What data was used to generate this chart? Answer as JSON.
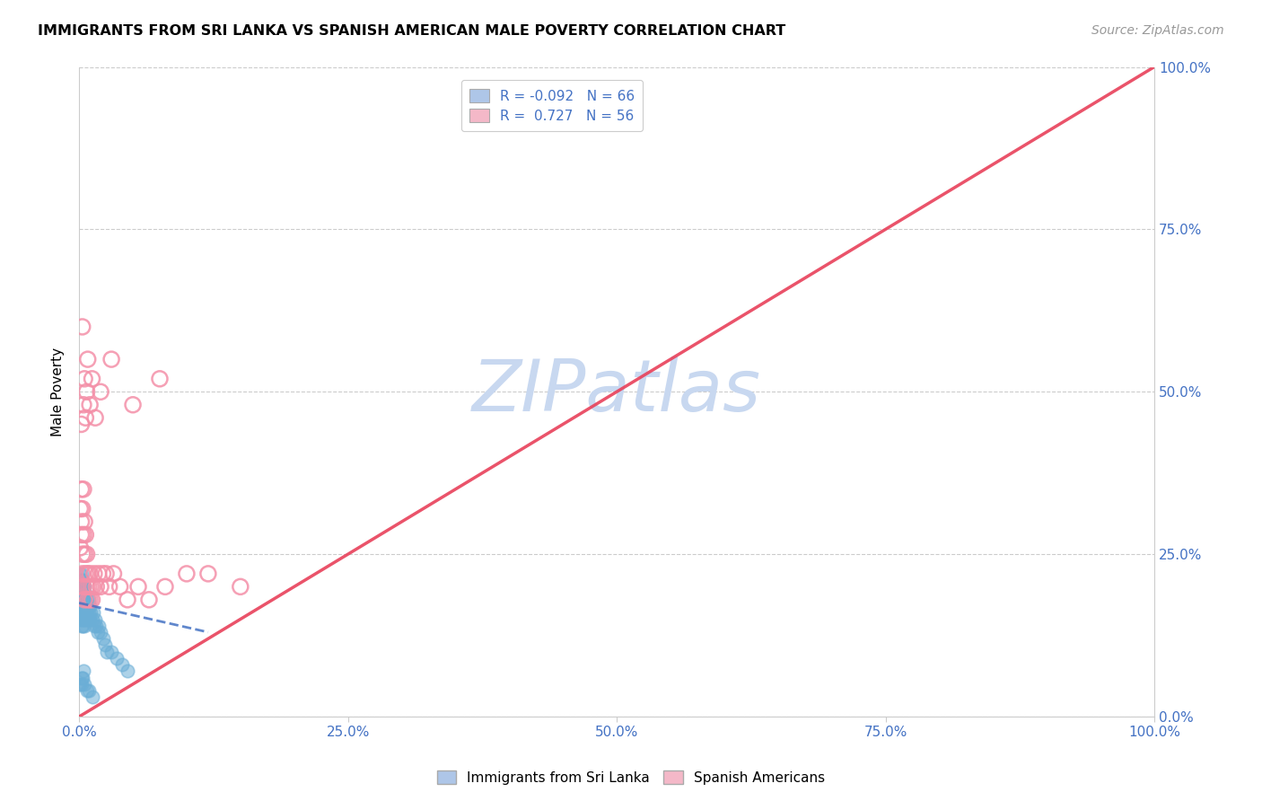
{
  "title": "IMMIGRANTS FROM SRI LANKA VS SPANISH AMERICAN MALE POVERTY CORRELATION CHART",
  "source": "Source: ZipAtlas.com",
  "ylabel": "Male Poverty",
  "xlim": [
    0.0,
    1.0
  ],
  "ylim": [
    0.0,
    1.0
  ],
  "legend_entry1_label": "R = -0.092   N = 66",
  "legend_entry2_label": "R =  0.727   N = 56",
  "legend_entry1_color": "#aec6e8",
  "legend_entry2_color": "#f4b8c8",
  "watermark": "ZIPatlas",
  "watermark_color": "#c8d8f0",
  "sri_lanka_dot_color": "#6baed6",
  "spanish_dot_color": "#f490a8",
  "sri_lanka_line_color": "#4472c4",
  "spanish_line_color": "#e8405a",
  "sri_lanka_line_x": [
    0.0,
    0.12
  ],
  "sri_lanka_line_y": [
    0.175,
    0.13
  ],
  "spanish_line_x": [
    0.0,
    1.0
  ],
  "spanish_line_y": [
    0.0,
    1.0
  ],
  "sri_lanka_x": [
    0.001,
    0.001,
    0.001,
    0.001,
    0.001,
    0.002,
    0.002,
    0.002,
    0.002,
    0.002,
    0.002,
    0.002,
    0.002,
    0.003,
    0.003,
    0.003,
    0.003,
    0.003,
    0.003,
    0.003,
    0.003,
    0.004,
    0.004,
    0.004,
    0.004,
    0.004,
    0.005,
    0.005,
    0.005,
    0.005,
    0.006,
    0.006,
    0.006,
    0.007,
    0.007,
    0.008,
    0.008,
    0.009,
    0.009,
    0.01,
    0.01,
    0.011,
    0.012,
    0.013,
    0.014,
    0.015,
    0.016,
    0.017,
    0.018,
    0.02,
    0.022,
    0.024,
    0.026,
    0.03,
    0.035,
    0.04,
    0.045,
    0.001,
    0.002,
    0.002,
    0.003,
    0.004,
    0.005,
    0.007,
    0.009,
    0.012
  ],
  "sri_lanka_y": [
    0.18,
    0.2,
    0.22,
    0.15,
    0.17,
    0.19,
    0.21,
    0.16,
    0.18,
    0.2,
    0.14,
    0.22,
    0.17,
    0.18,
    0.2,
    0.15,
    0.17,
    0.19,
    0.21,
    0.16,
    0.14,
    0.18,
    0.2,
    0.15,
    0.17,
    0.19,
    0.18,
    0.16,
    0.2,
    0.14,
    0.17,
    0.19,
    0.15,
    0.18,
    0.16,
    0.17,
    0.15,
    0.18,
    0.16,
    0.17,
    0.15,
    0.16,
    0.15,
    0.16,
    0.14,
    0.15,
    0.14,
    0.13,
    0.14,
    0.13,
    0.12,
    0.11,
    0.1,
    0.1,
    0.09,
    0.08,
    0.07,
    0.05,
    0.05,
    0.06,
    0.06,
    0.07,
    0.05,
    0.04,
    0.04,
    0.03
  ],
  "spanish_x": [
    0.001,
    0.001,
    0.002,
    0.002,
    0.002,
    0.003,
    0.003,
    0.003,
    0.004,
    0.004,
    0.004,
    0.005,
    0.005,
    0.005,
    0.006,
    0.006,
    0.007,
    0.007,
    0.008,
    0.008,
    0.009,
    0.01,
    0.01,
    0.011,
    0.012,
    0.013,
    0.014,
    0.016,
    0.018,
    0.02,
    0.022,
    0.025,
    0.028,
    0.032,
    0.038,
    0.045,
    0.055,
    0.065,
    0.08,
    0.1,
    0.12,
    0.15,
    0.002,
    0.003,
    0.004,
    0.005,
    0.006,
    0.007,
    0.008,
    0.01,
    0.012,
    0.015,
    0.02,
    0.03,
    0.05,
    0.075
  ],
  "spanish_y": [
    0.32,
    0.26,
    0.3,
    0.35,
    0.28,
    0.25,
    0.22,
    0.32,
    0.28,
    0.35,
    0.2,
    0.25,
    0.3,
    0.18,
    0.22,
    0.28,
    0.25,
    0.2,
    0.22,
    0.18,
    0.2,
    0.18,
    0.22,
    0.2,
    0.18,
    0.2,
    0.22,
    0.2,
    0.22,
    0.2,
    0.22,
    0.22,
    0.2,
    0.22,
    0.2,
    0.18,
    0.2,
    0.18,
    0.2,
    0.22,
    0.22,
    0.2,
    0.45,
    0.6,
    0.48,
    0.52,
    0.46,
    0.5,
    0.55,
    0.48,
    0.52,
    0.46,
    0.5,
    0.55,
    0.48,
    0.52
  ]
}
